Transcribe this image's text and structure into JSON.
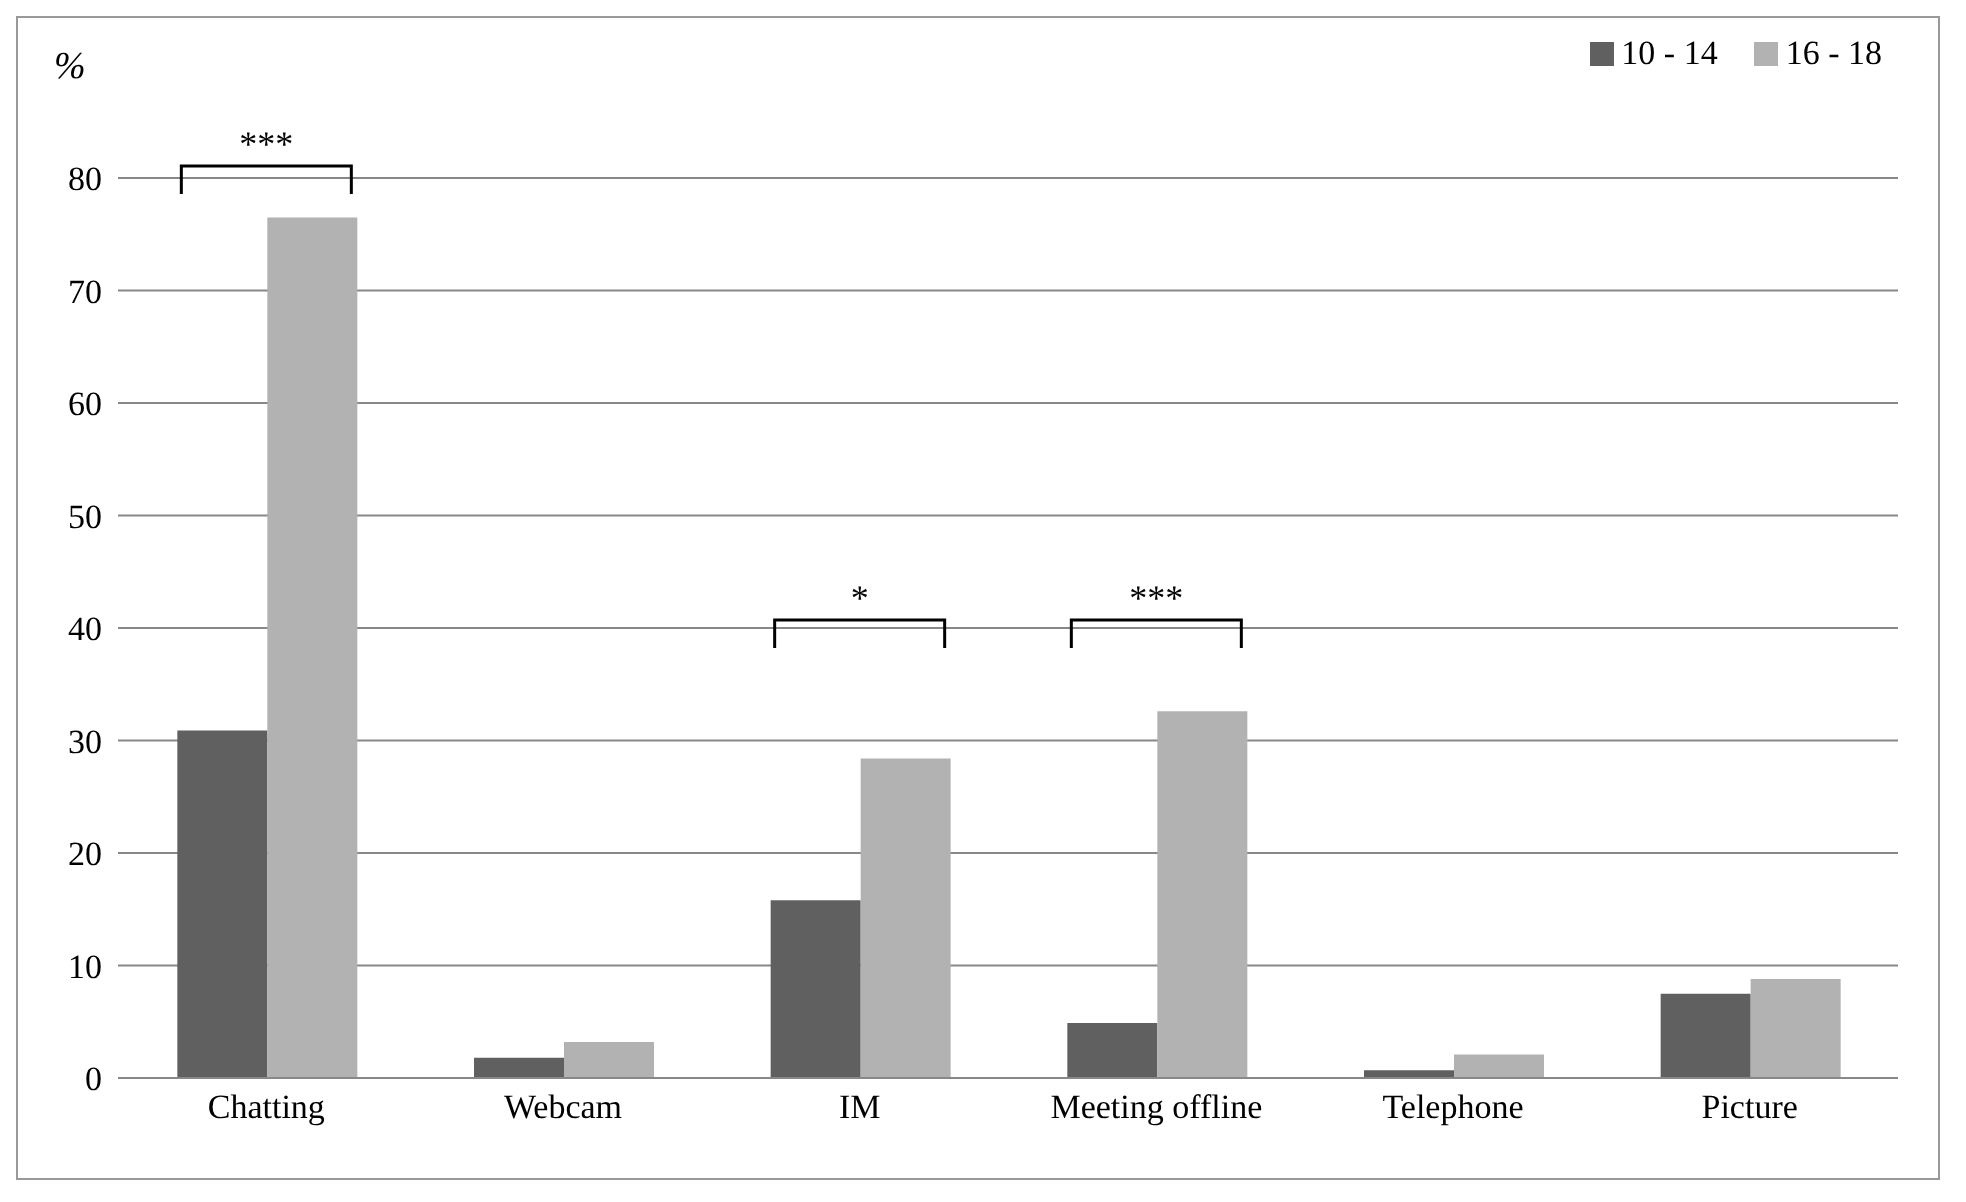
{
  "chart_data": {
    "type": "bar",
    "ylabel": "%",
    "categories": [
      "Chatting",
      "Webcam",
      "IM",
      "Meeting offline",
      "Telephone",
      "Picture"
    ],
    "series": [
      {
        "name": "10 - 14",
        "color": "#606060",
        "values": [
          30.9,
          1.8,
          15.8,
          4.9,
          0.7,
          7.5
        ]
      },
      {
        "name": "16 - 18",
        "color": "#b2b2b2",
        "values": [
          76.5,
          3.2,
          28.4,
          32.6,
          2.1,
          8.8
        ]
      }
    ],
    "ylim": [
      0,
      80
    ],
    "yticks": [
      0,
      10,
      20,
      30,
      40,
      50,
      60,
      70,
      80
    ],
    "grid": "y",
    "legend": "top right",
    "annotations": [
      "***",
      "*",
      "***"
    ]
  }
}
